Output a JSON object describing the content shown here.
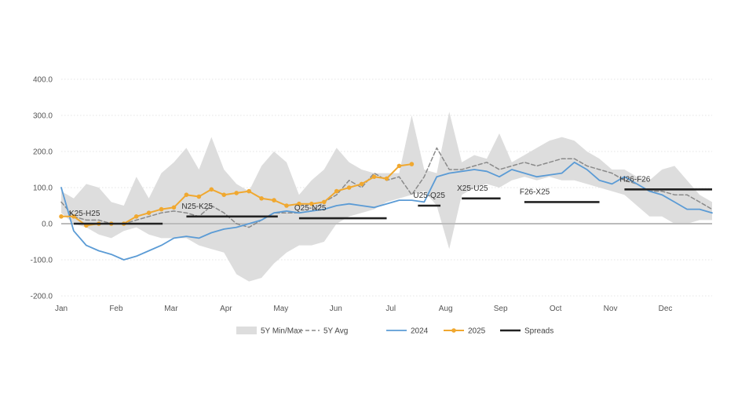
{
  "chart_data": {
    "type": "line",
    "title": "",
    "xlabel": "",
    "ylabel": "",
    "ylim": [
      -200,
      400
    ],
    "y_ticks": [
      "400.0",
      "300.0",
      "200.0",
      "100.0",
      "0.0",
      "-100.0",
      "-200.0"
    ],
    "x_ticks": [
      "Jan",
      "Feb",
      "Mar",
      "Apr",
      "May",
      "Jun",
      "Jul",
      "Aug",
      "Sep",
      "Oct",
      "Nov",
      "Dec"
    ],
    "x_unit": "week of year (0 = Jan, 52 = year end)",
    "grid": "horizontal dotted",
    "legend_position": "bottom",
    "colors": {
      "band": "#dddddd",
      "avg": "#8a8a8a",
      "y2024": "#5b9bd5",
      "y2025": "#f0a830",
      "spreads": "#222222",
      "zero": "#bbbbbb"
    },
    "legend": [
      "5Y Min/Max",
      "5Y Avg",
      "2024",
      "2025",
      "Spreads"
    ],
    "band": {
      "name": "5Y Min/Max",
      "x": [
        0,
        1,
        2,
        3,
        4,
        5,
        6,
        7,
        8,
        9,
        10,
        11,
        12,
        13,
        14,
        15,
        16,
        17,
        18,
        19,
        20,
        21,
        22,
        23,
        24,
        25,
        26,
        27,
        28,
        29,
        30,
        31,
        32,
        33,
        34,
        35,
        36,
        37,
        38,
        39,
        40,
        41,
        42,
        43,
        44,
        45,
        46,
        47,
        48,
        49,
        50,
        51,
        52
      ],
      "upper": [
        90,
        70,
        110,
        100,
        60,
        50,
        130,
        70,
        140,
        170,
        210,
        150,
        240,
        150,
        110,
        90,
        160,
        200,
        170,
        80,
        120,
        150,
        210,
        170,
        150,
        140,
        140,
        140,
        300,
        150,
        140,
        310,
        170,
        190,
        180,
        250,
        170,
        190,
        210,
        230,
        240,
        230,
        200,
        180,
        150,
        150,
        130,
        120,
        150,
        160,
        120,
        80,
        60
      ],
      "lower": [
        30,
        0,
        -10,
        -30,
        -40,
        -20,
        -10,
        -30,
        -40,
        -40,
        -40,
        -60,
        -70,
        -80,
        -140,
        -160,
        -150,
        -110,
        -80,
        -60,
        -60,
        -50,
        0,
        20,
        30,
        40,
        60,
        70,
        80,
        90,
        50,
        -70,
        80,
        100,
        110,
        100,
        120,
        130,
        120,
        130,
        120,
        120,
        110,
        100,
        90,
        80,
        50,
        20,
        20,
        0,
        0,
        10,
        10
      ]
    },
    "series": [
      {
        "name": "5Y Avg",
        "x": [
          0,
          1,
          2,
          3,
          4,
          5,
          6,
          7,
          8,
          9,
          10,
          11,
          12,
          13,
          14,
          15,
          16,
          17,
          18,
          19,
          20,
          21,
          22,
          23,
          24,
          25,
          26,
          27,
          28,
          29,
          30,
          31,
          32,
          33,
          34,
          35,
          36,
          37,
          38,
          39,
          40,
          41,
          42,
          43,
          44,
          45,
          46,
          47,
          48,
          49,
          50,
          51,
          52
        ],
        "values": [
          60,
          20,
          10,
          10,
          0,
          0,
          10,
          20,
          30,
          35,
          30,
          20,
          50,
          30,
          0,
          -10,
          10,
          30,
          30,
          30,
          35,
          60,
          80,
          120,
          100,
          140,
          120,
          130,
          80,
          130,
          210,
          150,
          150,
          160,
          170,
          150,
          160,
          170,
          160,
          170,
          180,
          180,
          160,
          150,
          140,
          120,
          110,
          90,
          90,
          80,
          80,
          60,
          40
        ]
      },
      {
        "name": "2024",
        "x": [
          0,
          1,
          2,
          3,
          4,
          5,
          6,
          7,
          8,
          9,
          10,
          11,
          12,
          13,
          14,
          15,
          16,
          17,
          18,
          19,
          20,
          21,
          22,
          23,
          24,
          25,
          26,
          27,
          28,
          29,
          30,
          31,
          32,
          33,
          34,
          35,
          36,
          37,
          38,
          39,
          40,
          41,
          42,
          43,
          44,
          45,
          46,
          47,
          48,
          49,
          50,
          51,
          52
        ],
        "values": [
          100,
          -20,
          -60,
          -75,
          -85,
          -100,
          -90,
          -75,
          -60,
          -40,
          -35,
          -40,
          -25,
          -15,
          -10,
          0,
          10,
          30,
          35,
          30,
          35,
          40,
          50,
          55,
          50,
          45,
          55,
          65,
          65,
          60,
          130,
          140,
          145,
          150,
          145,
          130,
          150,
          140,
          130,
          135,
          140,
          170,
          150,
          120,
          110,
          130,
          110,
          90,
          80,
          60,
          40,
          40,
          30
        ]
      },
      {
        "name": "2025",
        "x": [
          0,
          1,
          2,
          3,
          4,
          5,
          6,
          7,
          8,
          9,
          10,
          11,
          12,
          13,
          14,
          15,
          16,
          17,
          18,
          19,
          20,
          21,
          22,
          23,
          24,
          25,
          26,
          27,
          28
        ],
        "values": [
          20,
          20,
          -5,
          0,
          0,
          0,
          20,
          30,
          40,
          45,
          80,
          75,
          95,
          80,
          85,
          90,
          70,
          65,
          50,
          55,
          55,
          60,
          90,
          100,
          110,
          130,
          125,
          160,
          165
        ]
      }
    ],
    "spreads": [
      {
        "label": "K25-H25",
        "x0": 1,
        "x1": 8.1,
        "value": 0
      },
      {
        "label": "N25-K25",
        "x0": 10,
        "x1": 17.3,
        "value": 20
      },
      {
        "label": "Q25-N25",
        "x0": 19,
        "x1": 26,
        "value": 15
      },
      {
        "label": "U25-Q25",
        "x0": 28.5,
        "x1": 30.3,
        "value": 50
      },
      {
        "label": "X25-U25",
        "x0": 32,
        "x1": 35.1,
        "value": 70
      },
      {
        "label": "F26-X25",
        "x0": 37,
        "x1": 43,
        "value": 60
      },
      {
        "label": "H26-F26",
        "x0": 45,
        "x1": 52,
        "value": 95
      }
    ]
  }
}
